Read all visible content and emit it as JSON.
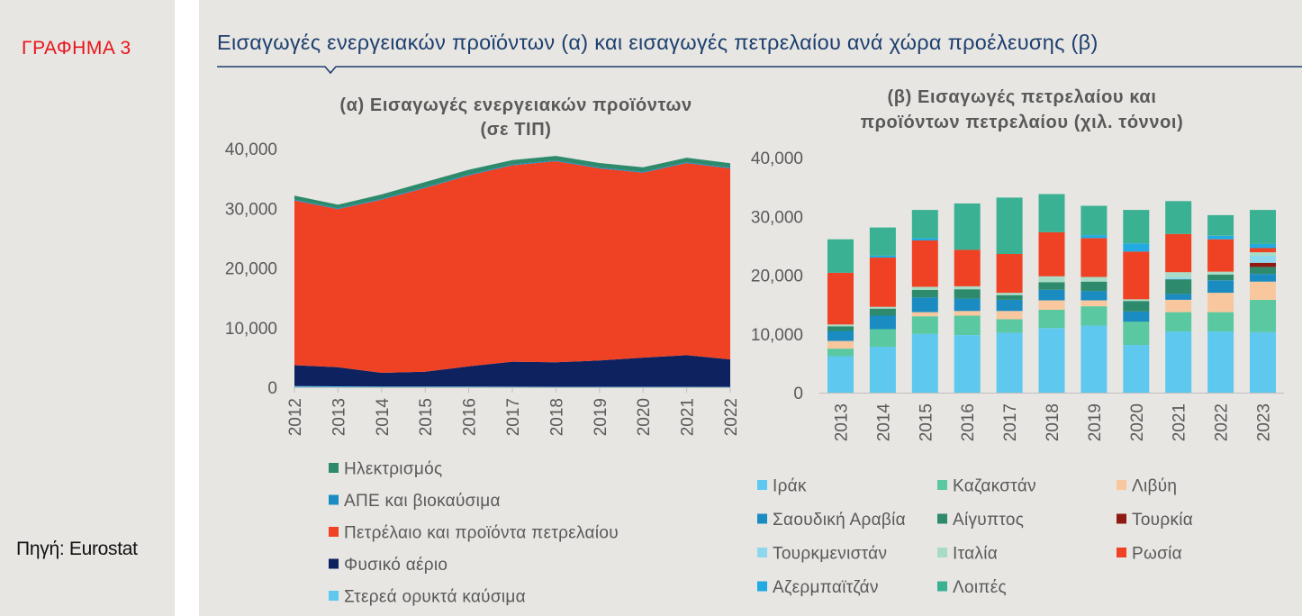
{
  "figure_label": "ΓΡΑΦΗΜΑ 3",
  "main_title": "Εισαγωγές ενεργειακών προϊόντων (α) και εισαγωγές πετρελαίου ανά χώρα προέλευσης (β)",
  "source": "Πηγή: Eurostat",
  "colors": {
    "title": "#1d3f6e",
    "label_red": "#e8141a",
    "panel_bg": "#e7e6e3"
  },
  "chart_data": [
    {
      "id": "a",
      "type": "area",
      "stacked": true,
      "title_lines": [
        "(α) Εισαγωγές ενεργειακών προϊόντων",
        "(σε ΤΙΠ)"
      ],
      "x": [
        "2012",
        "2013",
        "2014",
        "2015",
        "2016",
        "2017",
        "2018",
        "2019",
        "2020",
        "2021",
        "2022"
      ],
      "ylim": [
        0,
        40000
      ],
      "yticks": [
        0,
        10000,
        20000,
        30000,
        40000
      ],
      "ytick_labels": [
        "0",
        "10,000",
        "20,000",
        "30,000",
        "40,000"
      ],
      "series": [
        {
          "name": "Στερεά ορυκτά καύσιμα",
          "color": "#5ec8ee",
          "values": [
            200,
            150,
            120,
            100,
            100,
            90,
            80,
            80,
            70,
            70,
            60
          ]
        },
        {
          "name": "Φυσικό αέριο",
          "color": "#0e2260",
          "values": [
            3500,
            3200,
            2300,
            2500,
            3400,
            4200,
            4100,
            4400,
            4900,
            5300,
            4600
          ]
        },
        {
          "name": "Πετρέλαιο και προϊόντα πετρελαίου",
          "color": "#ef4123",
          "values": [
            27600,
            26500,
            29000,
            30800,
            32000,
            32900,
            33700,
            32200,
            31000,
            32200,
            32000
          ]
        },
        {
          "name": "ΑΠΕ και βιοκαύσιμα",
          "color": "#1a8cc2",
          "values": [
            150,
            150,
            150,
            150,
            150,
            150,
            150,
            150,
            150,
            150,
            150
          ]
        },
        {
          "name": "Ηλεκτρισμός",
          "color": "#2e8a6c",
          "values": [
            650,
            600,
            750,
            850,
            800,
            750,
            750,
            750,
            750,
            750,
            750
          ]
        }
      ],
      "legend_order": [
        "Ηλεκτρισμός",
        "ΑΠΕ και βιοκαύσιμα",
        "Πετρέλαιο και προϊόντα πετρελαίου",
        "Φυσικό αέριο",
        "Στερεά ορυκτά καύσιμα"
      ],
      "legend_position": "bottom-left"
    },
    {
      "id": "b",
      "type": "bar",
      "stacked": true,
      "title_lines": [
        "(β) Εισαγωγές πετρελαίου και",
        "προϊόντων πετρελαίου (χιλ. τόννοι)"
      ],
      "categories": [
        "2013",
        "2014",
        "2015",
        "2016",
        "2017",
        "2018",
        "2019",
        "2020",
        "2021",
        "2022",
        "2023"
      ],
      "ylim": [
        0,
        40000
      ],
      "yticks": [
        0,
        10000,
        20000,
        30000,
        40000
      ],
      "ytick_labels": [
        "0",
        "10,000",
        "20,000",
        "30,000",
        "40,000"
      ],
      "series": [
        {
          "name": "Ιράκ",
          "color": "#5ec8ee",
          "values": [
            6200,
            7800,
            10000,
            9800,
            10200,
            11000,
            11400,
            8100,
            10400,
            10400,
            10300
          ]
        },
        {
          "name": "Καζακστάν",
          "color": "#5ac8a0",
          "values": [
            1300,
            3000,
            3000,
            3300,
            2300,
            3100,
            3300,
            4000,
            3300,
            3300,
            5500
          ]
        },
        {
          "name": "Λιβύη",
          "color": "#f9c79e",
          "values": [
            1300,
            0,
            700,
            800,
            1400,
            1600,
            1000,
            0,
            2100,
            3300,
            3100
          ]
        },
        {
          "name": "Σαουδική Αραβία",
          "color": "#1a8cc2",
          "values": [
            1700,
            2300,
            2500,
            2100,
            1900,
            1800,
            1600,
            1700,
            1000,
            2100,
            1300
          ]
        },
        {
          "name": "Αίγυπτος",
          "color": "#2e8a6c",
          "values": [
            800,
            1200,
            1300,
            1600,
            800,
            1300,
            1600,
            1800,
            2500,
            1000,
            1200
          ]
        },
        {
          "name": "Τουρκία",
          "color": "#8e1a12",
          "values": [
            0,
            0,
            0,
            0,
            0,
            0,
            0,
            0,
            0,
            0,
            700
          ]
        },
        {
          "name": "Τουρκμενιστάν",
          "color": "#8ed8ef",
          "values": [
            0,
            0,
            0,
            0,
            0,
            0,
            0,
            0,
            300,
            0,
            1200
          ]
        },
        {
          "name": "Ιταλία",
          "color": "#a8dcc6",
          "values": [
            300,
            300,
            500,
            500,
            400,
            1000,
            800,
            300,
            900,
            500,
            600
          ]
        },
        {
          "name": "Ρωσία",
          "color": "#ef4123",
          "values": [
            8800,
            8400,
            7900,
            6200,
            6600,
            7500,
            6600,
            8100,
            6500,
            5500,
            700
          ]
        },
        {
          "name": "Αζερμπαϊτζάν",
          "color": "#22abe2",
          "values": [
            0,
            300,
            400,
            0,
            0,
            0,
            500,
            1400,
            0,
            600,
            700
          ]
        },
        {
          "name": "Λοιπές",
          "color": "#3bb193",
          "values": [
            5700,
            4800,
            4800,
            7900,
            9600,
            6500,
            5000,
            5700,
            5600,
            3500,
            5800
          ]
        }
      ],
      "legend_position": "bottom"
    }
  ]
}
